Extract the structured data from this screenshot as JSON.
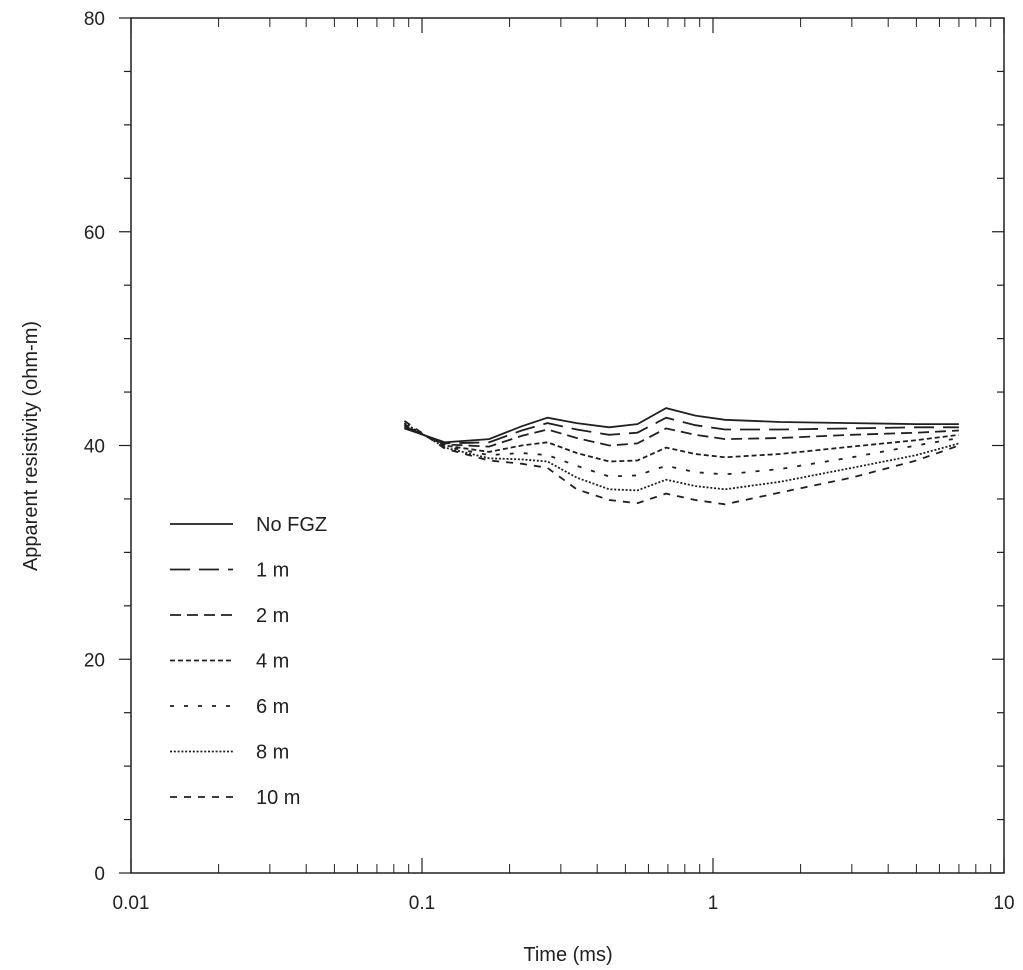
{
  "chart_data": {
    "type": "line",
    "title": "",
    "xlabel": "Time (ms)",
    "ylabel": "Apparent resistivity (ohm-m)",
    "xscale": "log",
    "xlim": [
      0.01,
      10
    ],
    "ylim": [
      0,
      80
    ],
    "x_ticks": [
      0.01,
      0.1,
      1,
      10
    ],
    "x_tick_labels": [
      "0.01",
      "0.1",
      "1",
      "10"
    ],
    "y_ticks": [
      0,
      20,
      40,
      60,
      80
    ],
    "y_tick_labels": [
      "0",
      "20",
      "40",
      "60",
      "80"
    ],
    "grid": false,
    "legend_position": "left",
    "series": [
      {
        "name": "No FGZ",
        "line_style": "solid",
        "x": [
          0.087,
          0.12,
          0.17,
          0.22,
          0.27,
          0.34,
          0.44,
          0.55,
          0.69,
          0.87,
          1.1,
          1.7,
          3.0,
          5.0,
          7.0
        ],
        "y": [
          41.6,
          40.3,
          40.6,
          41.8,
          42.6,
          42.1,
          41.7,
          42.0,
          43.5,
          42.8,
          42.4,
          42.2,
          42.1,
          42.0,
          42.0
        ]
      },
      {
        "name": "1 m",
        "line_style": "long-dash",
        "x": [
          0.087,
          0.12,
          0.17,
          0.22,
          0.27,
          0.34,
          0.44,
          0.55,
          0.69,
          0.87,
          1.1,
          1.7,
          3.0,
          5.0,
          7.0
        ],
        "y": [
          41.7,
          40.2,
          40.3,
          41.4,
          42.1,
          41.5,
          41.0,
          41.2,
          42.6,
          41.9,
          41.5,
          41.5,
          41.6,
          41.7,
          41.7
        ]
      },
      {
        "name": "2 m",
        "line_style": "dash",
        "x": [
          0.087,
          0.12,
          0.17,
          0.22,
          0.27,
          0.34,
          0.44,
          0.55,
          0.69,
          0.87,
          1.1,
          1.7,
          3.0,
          5.0,
          7.0
        ],
        "y": [
          41.8,
          40.1,
          39.9,
          40.9,
          41.5,
          40.7,
          40.0,
          40.2,
          41.6,
          41.0,
          40.6,
          40.7,
          41.0,
          41.2,
          41.4
        ]
      },
      {
        "name": "4 m",
        "line_style": "short-dash",
        "x": [
          0.087,
          0.12,
          0.17,
          0.22,
          0.27,
          0.34,
          0.44,
          0.55,
          0.69,
          0.87,
          1.1,
          1.7,
          3.0,
          5.0,
          7.0
        ],
        "y": [
          41.9,
          40.0,
          39.4,
          40.0,
          40.3,
          39.3,
          38.5,
          38.6,
          39.8,
          39.2,
          38.9,
          39.2,
          39.9,
          40.5,
          41.0
        ]
      },
      {
        "name": "6 m",
        "line_style": "sparse-dash",
        "x": [
          0.087,
          0.12,
          0.17,
          0.22,
          0.27,
          0.34,
          0.44,
          0.55,
          0.69,
          0.87,
          1.1,
          1.7,
          3.0,
          5.0,
          7.0
        ],
        "y": [
          42.0,
          39.9,
          39.1,
          39.3,
          39.1,
          38.1,
          37.1,
          37.2,
          38.1,
          37.5,
          37.3,
          37.8,
          38.9,
          40.0,
          40.7
        ]
      },
      {
        "name": "8 m",
        "line_style": "dotted",
        "x": [
          0.087,
          0.12,
          0.17,
          0.22,
          0.27,
          0.34,
          0.44,
          0.55,
          0.69,
          0.87,
          1.1,
          1.7,
          3.0,
          5.0,
          7.0
        ],
        "y": [
          42.1,
          39.8,
          38.8,
          38.7,
          38.5,
          37.0,
          35.9,
          35.8,
          36.8,
          36.2,
          35.9,
          36.6,
          37.9,
          39.1,
          40.2
        ]
      },
      {
        "name": "10 m",
        "line_style": "dash-gap",
        "x": [
          0.087,
          0.12,
          0.17,
          0.22,
          0.27,
          0.34,
          0.44,
          0.55,
          0.69,
          0.87,
          1.1,
          1.7,
          3.0,
          5.0,
          7.0
        ],
        "y": [
          42.3,
          39.7,
          38.6,
          38.3,
          37.9,
          35.9,
          34.9,
          34.6,
          35.5,
          34.9,
          34.5,
          35.6,
          37.0,
          38.6,
          40.0
        ]
      }
    ]
  },
  "colors": {
    "line": "#231f20",
    "background": "#ffffff"
  }
}
